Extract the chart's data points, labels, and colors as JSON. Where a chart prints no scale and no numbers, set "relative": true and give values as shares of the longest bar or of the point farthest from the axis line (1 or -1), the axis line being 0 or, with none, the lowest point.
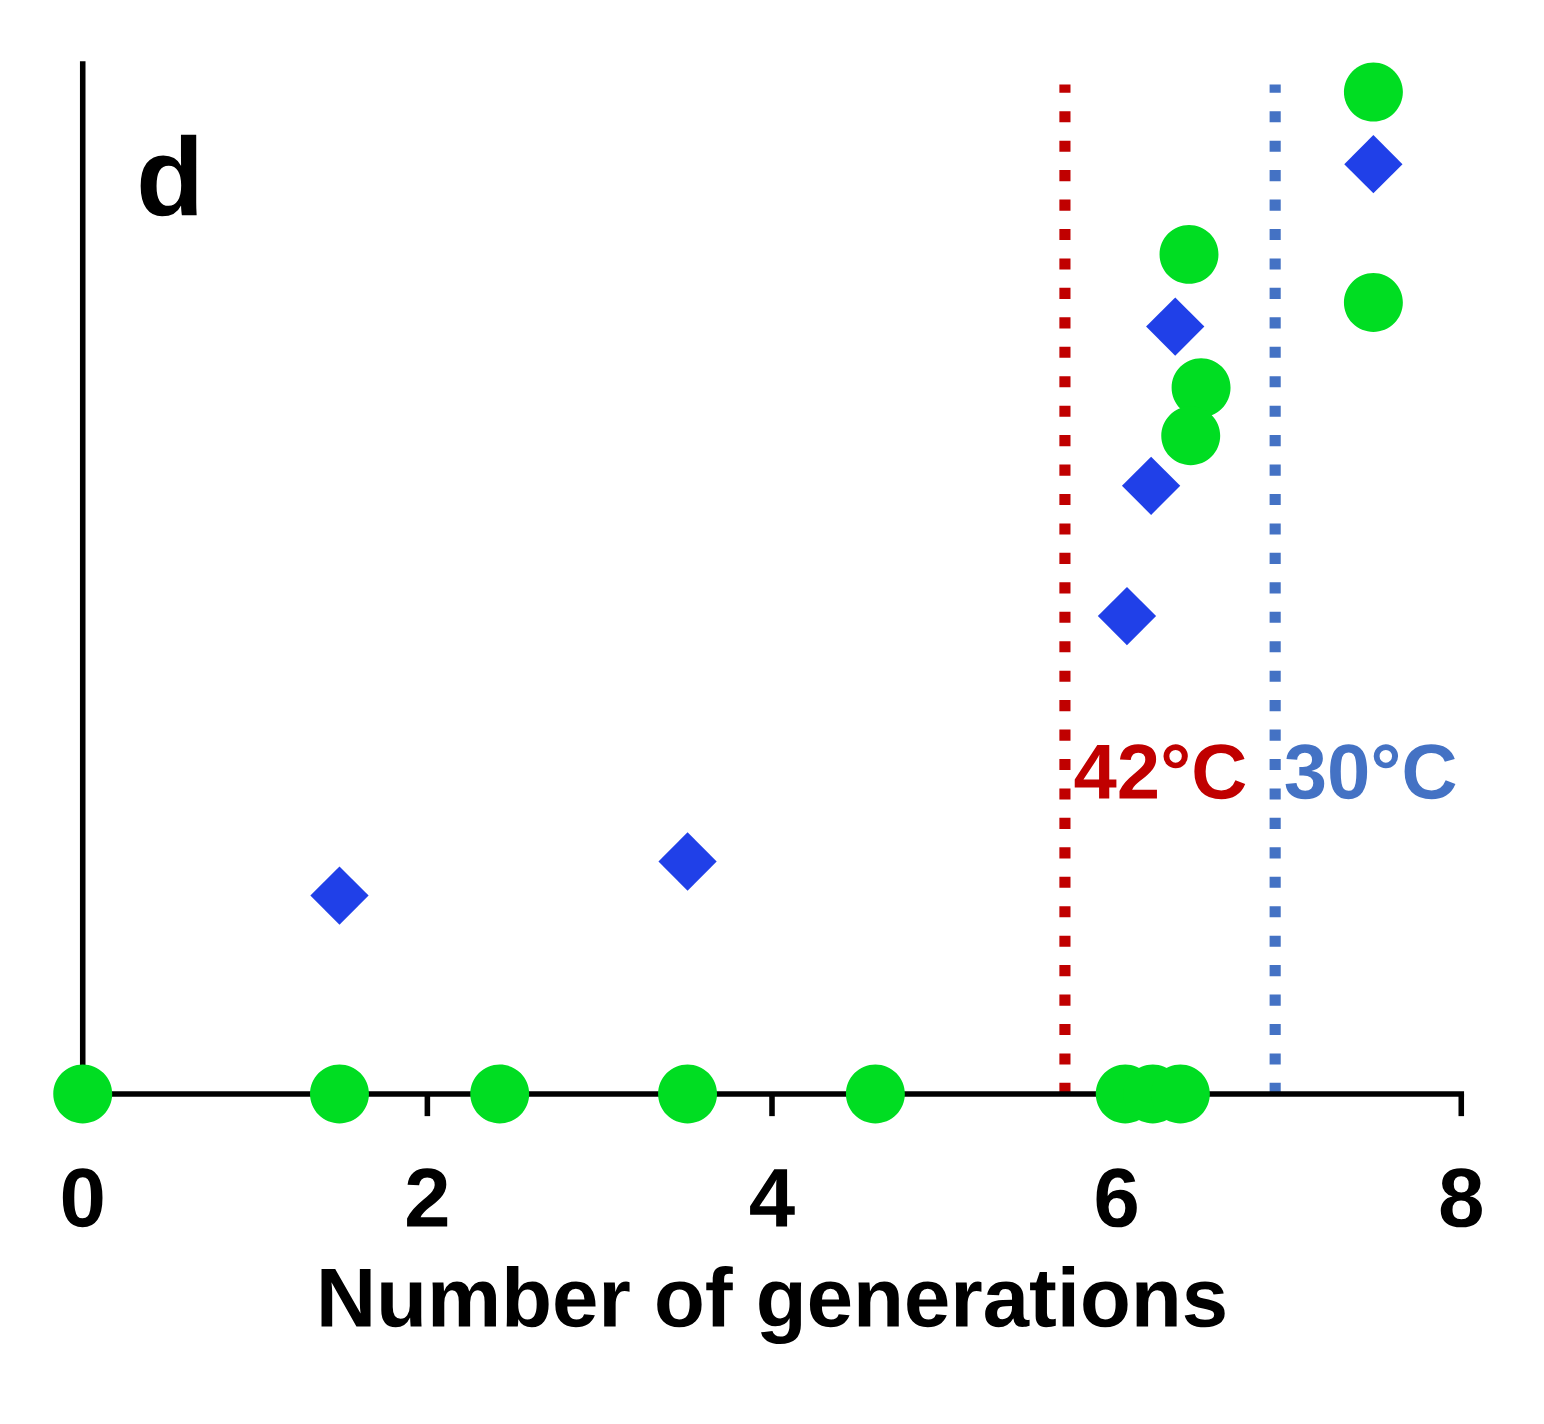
{
  "chart_data": {
    "type": "scatter",
    "relative": true,
    "xlabel": "Number of generations",
    "xlim": [
      0,
      8
    ],
    "xticks": [
      0,
      2,
      4,
      6,
      8
    ],
    "grid": false,
    "annotations": [
      "d"
    ],
    "ref_lines": [
      {
        "axis": "x",
        "value": 5.7,
        "label": "42°C",
        "color": "#c00000",
        "line_style": "dotted"
      },
      {
        "axis": "x",
        "value": 6.92,
        "label": "30°C",
        "color": "#4472c4",
        "line_style": "dotted"
      }
    ],
    "series": [
      {
        "color": "#2040e8",
        "marker": "diamond",
        "x": [
          1.49,
          3.51,
          6.06,
          6.2,
          6.34,
          7.49
        ],
        "values": [
          0.198,
          0.232,
          0.477,
          0.607,
          0.766,
          0.928
        ]
      },
      {
        "color": "#00dd22",
        "marker": "circle",
        "x": [
          0,
          1.49,
          2.42,
          3.51,
          4.6,
          6.05,
          6.21,
          6.37,
          6.42,
          6.49,
          6.43,
          7.49,
          7.49
        ],
        "values": [
          0,
          0,
          0,
          0,
          0,
          0,
          0,
          0,
          0.838,
          0.705,
          0.657,
          1,
          0.79
        ]
      }
    ]
  }
}
